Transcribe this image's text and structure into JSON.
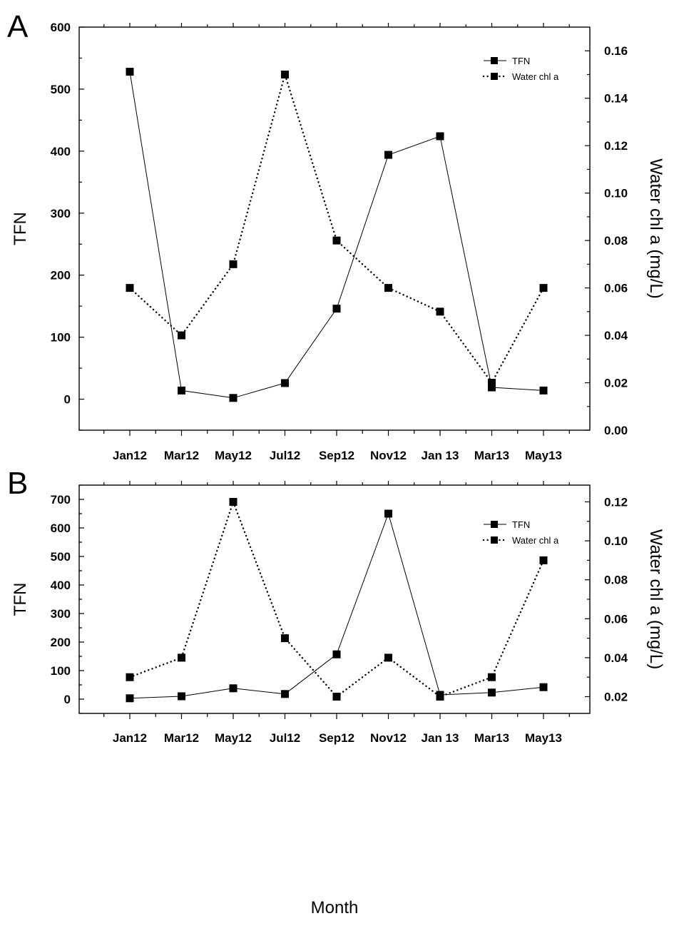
{
  "chart_data": [
    {
      "type": "line",
      "panel_label": "A",
      "categories": [
        "Jan12",
        "Mar12",
        "May12",
        "Jul12",
        "Sep12",
        "Nov12",
        "Jan 13",
        "Mar13",
        "May13"
      ],
      "ylabel": "TFN",
      "ylabel_right": "Water chl a (mg/L)",
      "xlabel": "",
      "ylim": [
        -50,
        600
      ],
      "ylim_right": [
        0,
        0.17
      ],
      "yticks": [
        0,
        100,
        200,
        300,
        400,
        500,
        600
      ],
      "yticks_right": [
        0.0,
        0.02,
        0.04,
        0.06,
        0.08,
        0.1,
        0.12,
        0.14,
        0.16
      ],
      "yticks_right_labels": [
        "0.00",
        "0.02",
        "0.04",
        "0.06",
        "0.08",
        "0.10",
        "0.12",
        "0.14",
        "0.16"
      ],
      "legend_position": "top-right",
      "series": [
        {
          "name": "TFN",
          "axis": "left",
          "style": "solid",
          "values": [
            528,
            14,
            2,
            26,
            146,
            394,
            424,
            19,
            14
          ]
        },
        {
          "name": "Water chl a",
          "axis": "right",
          "style": "dotted",
          "values": [
            0.06,
            0.04,
            0.07,
            0.15,
            0.08,
            0.06,
            0.05,
            0.02,
            0.06
          ]
        }
      ]
    },
    {
      "type": "line",
      "panel_label": "B",
      "categories": [
        "Jan12",
        "Mar12",
        "May12",
        "Jul12",
        "Sep12",
        "Nov12",
        "Jan 13",
        "Mar13",
        "May13"
      ],
      "ylabel": "TFN",
      "ylabel_right": "Water chl a (mg/L)",
      "xlabel": "Month",
      "ylim": [
        -50,
        750
      ],
      "ylim_right": [
        0.0114,
        0.1286
      ],
      "yticks": [
        0,
        100,
        200,
        300,
        400,
        500,
        600,
        700
      ],
      "yticks_right": [
        0.02,
        0.04,
        0.06,
        0.08,
        0.1,
        0.12
      ],
      "yticks_right_labels": [
        "0.02",
        "0.04",
        "0.06",
        "0.08",
        "0.10",
        "0.12"
      ],
      "legend_position": "top-right",
      "series": [
        {
          "name": "TFN",
          "axis": "left",
          "style": "solid",
          "values": [
            3,
            10,
            38,
            18,
            157,
            650,
            15,
            23,
            42
          ]
        },
        {
          "name": "Water chl a",
          "axis": "right",
          "style": "dotted",
          "values": [
            0.03,
            0.04,
            0.12,
            0.05,
            0.02,
            0.04,
            0.02,
            0.03,
            0.09
          ]
        }
      ]
    }
  ]
}
